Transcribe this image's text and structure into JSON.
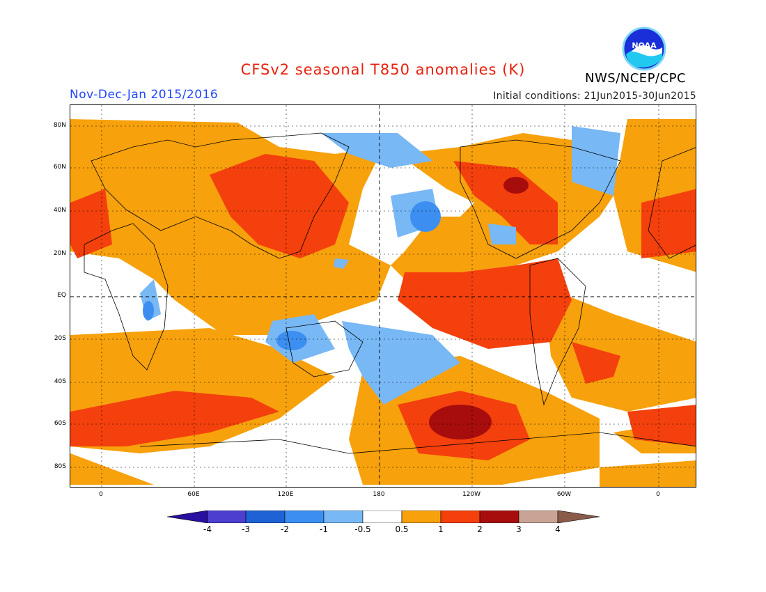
{
  "header": {
    "title": "CFSv2 seasonal T850 anomalies (K)",
    "period": "Nov-Dec-Jan 2015/2016",
    "initial_conditions": "Initial conditions: 21Jun2015-30Jun2015",
    "agency": "NWS/NCEP/CPC",
    "logo_text": "NOAA"
  },
  "axes": {
    "lat_labels": [
      "80N",
      "60N",
      "40N",
      "20N",
      "EQ",
      "20S",
      "40S",
      "60S",
      "80S"
    ],
    "lon_labels": [
      "0",
      "60E",
      "120E",
      "180",
      "120W",
      "60W",
      "0"
    ]
  },
  "colorbar": {
    "labels": [
      "-4",
      "-3",
      "-2",
      "-1",
      "-0.5",
      "0.5",
      "1",
      "2",
      "3",
      "4"
    ],
    "colors": [
      "#2a0fa0",
      "#4c3fcf",
      "#1e62d6",
      "#3c8ff0",
      "#78b8f5",
      "#ffffff",
      "#f7a10c",
      "#f4400c",
      "#a80d0d",
      "#c9a494",
      "#8a5a4a"
    ]
  },
  "colors": {
    "ocean": "#ffffff",
    "warm1": "#f7a10c",
    "warm2": "#f4400c",
    "warm3": "#a80d0d",
    "cool1": "#78b8f5",
    "cool2": "#3c8ff0"
  }
}
